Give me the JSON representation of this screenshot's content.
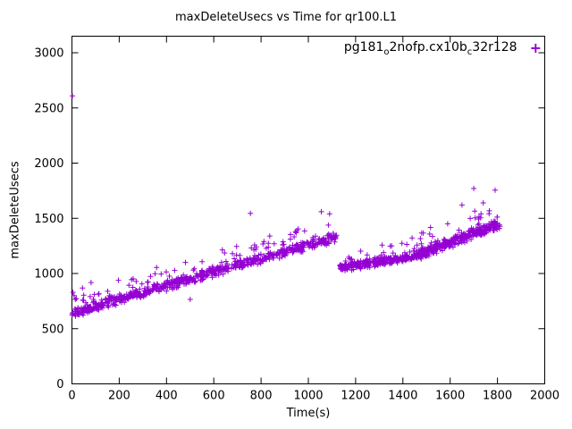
{
  "chart_data": {
    "type": "scatter",
    "title": "maxDeleteUsecs vs Time for qr100.L1",
    "xlabel": "Time(s)",
    "ylabel": "maxDeleteUsecs",
    "xlim": [
      0,
      2000
    ],
    "ylim": [
      0,
      3150
    ],
    "x_ticks": [
      0,
      200,
      400,
      600,
      800,
      1000,
      1200,
      1400,
      1600,
      1800,
      2000
    ],
    "y_ticks": [
      0,
      500,
      1000,
      1500,
      2000,
      2500,
      3000
    ],
    "grid": false,
    "border": true,
    "background_color": "#ffffff",
    "text_color": "#000000",
    "legend": {
      "position": "top-right",
      "label_plain": "pg181_o2nofp.cx10b_c32r128",
      "label_segments": [
        {
          "text": "pg181",
          "sub": false
        },
        {
          "text": "o",
          "sub": true
        },
        {
          "text": "2nofp.cx10b",
          "sub": false
        },
        {
          "text": "c",
          "sub": true
        },
        {
          "text": "32r128",
          "sub": false
        }
      ],
      "marker": "plus"
    },
    "series": [
      {
        "name": "pg181_o2nofp.cx10b_c32r128",
        "color": "#9400d3",
        "marker": "plus",
        "seed": 1337,
        "trend_segments": [
          {
            "x_start": 0,
            "x_end": 1120,
            "y_start": 645,
            "y_end": 1330,
            "count": 760,
            "noise": 55,
            "spike_prob": 0.1,
            "spike_max": 190
          },
          {
            "x_start": 1132,
            "x_end": 1450,
            "y_start": 1055,
            "y_end": 1155,
            "count": 270,
            "noise": 45,
            "spike_prob": 0.08,
            "spike_max": 140
          },
          {
            "x_start": 1450,
            "x_end": 1812,
            "y_start": 1160,
            "y_end": 1450,
            "count": 330,
            "noise": 55,
            "spike_prob": 0.15,
            "spike_max": 200
          }
        ],
        "outlier_points": [
          [
            2,
            2610
          ],
          [
            4,
            830
          ],
          [
            9,
            800
          ],
          [
            14,
            765
          ],
          [
            500,
            765
          ],
          [
            755,
            1545
          ],
          [
            1055,
            1560
          ],
          [
            1090,
            1540
          ],
          [
            1650,
            1620
          ],
          [
            1700,
            1770
          ],
          [
            1740,
            1640
          ],
          [
            1790,
            1755
          ]
        ]
      }
    ]
  }
}
